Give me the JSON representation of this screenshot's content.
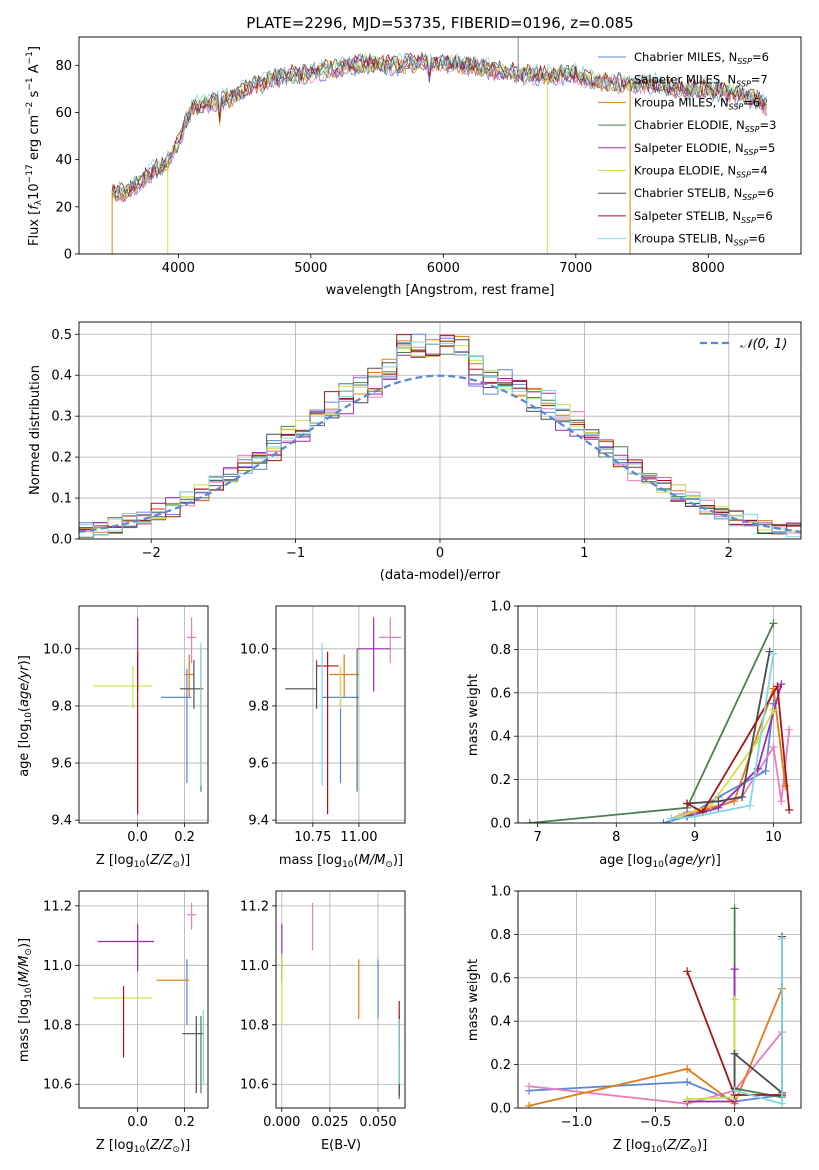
{
  "colors": {
    "chabrier_miles": "#5b86d6",
    "salpeter_miles": "#e97ec0",
    "kroupa_miles": "#e07b19",
    "chabrier_elodie": "#4e7f52",
    "salpeter_elodie": "#9a2bb5",
    "kroupa_elodie": "#cde04a",
    "chabrier_stelib": "#4d4d4d",
    "salpeter_stelib": "#a3161c",
    "kroupa_stelib": "#7fd8e0",
    "normal": "#5b86d6",
    "grid": "#b0b0b0"
  },
  "chart_data": [
    {
      "id": "spectrum",
      "type": "line",
      "title": "PLATE=2296, MJD=53735, FIBERID=0196, z=0.085",
      "xlabel": "wavelength [Angstrom, rest frame]",
      "ylabel": "Flux [f_λ 10^-17 erg cm^-2 s^-1 A^-1]",
      "xlim": [
        3250,
        8700
      ],
      "ylim": [
        0,
        92
      ],
      "xticks": [
        4000,
        5000,
        6000,
        7000,
        8000
      ],
      "yticks": [
        0,
        20,
        40,
        60,
        80
      ],
      "grid": false,
      "legend_position": "top-right",
      "series": [
        {
          "name": "Chabrier MILES, N_SSP=6",
          "color": "#5b86d6"
        },
        {
          "name": "Salpeter MILES, N_SSP=7",
          "color": "#e97ec0"
        },
        {
          "name": "Kroupa MILES, N_SSP=6",
          "color": "#e07b19"
        },
        {
          "name": "Chabrier ELODIE, N_SSP=3",
          "color": "#4e7f52"
        },
        {
          "name": "Salpeter ELODIE, N_SSP=5",
          "color": "#9a2bb5"
        },
        {
          "name": "Kroupa ELODIE, N_SSP=4",
          "color": "#cde04a"
        },
        {
          "name": "Chabrier STELIB, N_SSP=6",
          "color": "#4d4d4d"
        },
        {
          "name": "Salpeter STELIB, N_SSP=6",
          "color": "#a3161c"
        },
        {
          "name": "Kroupa STELIB, N_SSP=6",
          "color": "#7fd8e0"
        }
      ],
      "continuum": {
        "x": [
          3500,
          3600,
          3700,
          3800,
          3900,
          4000,
          4100,
          4200,
          4300,
          4400,
          4500,
          4600,
          4700,
          4800,
          4900,
          5000,
          5200,
          5400,
          5600,
          5800,
          6000,
          6200,
          6400,
          6600,
          6800,
          7000,
          7200,
          7400,
          7600,
          7800,
          8000,
          8200,
          8350,
          8450
        ],
        "y": [
          27,
          26,
          30,
          35,
          38,
          47,
          62,
          64,
          65,
          66,
          70,
          72,
          74,
          76,
          76,
          77,
          79,
          81,
          80,
          81,
          81,
          80,
          78,
          76,
          76,
          76,
          73,
          72,
          72,
          70,
          70,
          68,
          66,
          62
        ]
      }
    },
    {
      "id": "residuals",
      "type": "histogram",
      "xlabel": "(data-model)/error",
      "ylabel": "Normed distribution",
      "xlim": [
        -2.5,
        2.5
      ],
      "ylim": [
        0,
        0.53
      ],
      "xticks": [
        -2,
        -1,
        0,
        1,
        2
      ],
      "yticks": [
        0.0,
        0.1,
        0.2,
        0.3,
        0.4,
        0.5
      ],
      "grid": true,
      "legend": [
        "𝒩(0, 1)"
      ],
      "bin_width": 0.1
    },
    {
      "id": "age_vs_Z",
      "type": "scatter_errorbar",
      "xlabel": "Z [log10(Z/Z⊙)]",
      "ylabel": "age [log10(age/yr)]",
      "xlim": [
        -0.25,
        0.3
      ],
      "ylim": [
        9.39,
        10.15
      ],
      "xticks": [
        0.0,
        0.2
      ],
      "yticks": [
        9.4,
        9.6,
        9.8,
        10.0
      ],
      "grid": true,
      "points": [
        {
          "series": "chabrier_miles",
          "x": 0.21,
          "y": 9.83,
          "xerr": [
            0.11,
            0.02
          ],
          "yerr": [
            0.3,
            0.1
          ]
        },
        {
          "series": "salpeter_miles",
          "x": 0.23,
          "y": 10.04,
          "xerr": [
            0.02,
            0.02
          ],
          "yerr": [
            0.09,
            0.07
          ]
        },
        {
          "series": "kroupa_miles",
          "x": 0.22,
          "y": 9.91,
          "xerr": [
            0.02,
            0.02
          ],
          "yerr": [
            0.08,
            0.07
          ]
        },
        {
          "series": "chabrier_elodie",
          "x": 0.27,
          "y": 9.83,
          "xerr": [
            0.0,
            0.0
          ],
          "yerr": [
            0.33,
            0.17
          ]
        },
        {
          "series": "salpeter_elodie",
          "x": 0.0,
          "y": 10.0,
          "xerr": [
            0.0,
            0.0
          ],
          "yerr": [
            0.15,
            0.11
          ]
        },
        {
          "series": "kroupa_elodie",
          "x": -0.02,
          "y": 9.87,
          "xerr": [
            0.17,
            0.08
          ],
          "yerr": [
            0.08,
            0.07
          ]
        },
        {
          "series": "chabrier_stelib",
          "x": 0.24,
          "y": 9.86,
          "xerr": [
            0.06,
            0.04
          ],
          "yerr": [
            0.07,
            0.1
          ]
        },
        {
          "series": "salpeter_stelib",
          "x": 0.0,
          "y": 9.94,
          "xerr": [
            0.0,
            0.0
          ],
          "yerr": [
            0.52,
            0.05
          ]
        },
        {
          "series": "kroupa_stelib",
          "x": 0.27,
          "y": 9.95,
          "xerr": [
            0.0,
            0.0
          ],
          "yerr": [
            0.43,
            0.07
          ]
        }
      ]
    },
    {
      "id": "age_vs_mass",
      "type": "scatter_errorbar",
      "xlabel": "mass [log10(M/M⊙)]",
      "ylabel": "",
      "xlim": [
        10.55,
        11.25
      ],
      "ylim": [
        9.39,
        10.15
      ],
      "xticks": [
        10.75,
        11.0
      ],
      "yticks": [
        9.4,
        9.6,
        9.8,
        10.0
      ],
      "grid": true,
      "points": [
        {
          "series": "chabrier_miles",
          "x": 10.9,
          "y": 9.83,
          "xerr": [
            0.1,
            0.1
          ],
          "yerr": [
            0.3,
            0.1
          ]
        },
        {
          "series": "salpeter_miles",
          "x": 11.17,
          "y": 10.04,
          "xerr": [
            0.06,
            0.06
          ],
          "yerr": [
            0.09,
            0.07
          ]
        },
        {
          "series": "kroupa_miles",
          "x": 10.92,
          "y": 9.91,
          "xerr": [
            0.08,
            0.08
          ],
          "yerr": [
            0.08,
            0.07
          ]
        },
        {
          "series": "chabrier_elodie",
          "x": 10.99,
          "y": 9.83,
          "xerr": [
            0.0,
            0.0
          ],
          "yerr": [
            0.33,
            0.17
          ]
        },
        {
          "series": "salpeter_elodie",
          "x": 11.08,
          "y": 10.0,
          "xerr": [
            0.09,
            0.09
          ],
          "yerr": [
            0.15,
            0.11
          ]
        },
        {
          "series": "kroupa_elodie",
          "x": 10.9,
          "y": 9.87,
          "xerr": [
            0.0,
            0.0
          ],
          "yerr": [
            0.08,
            0.07
          ]
        },
        {
          "series": "chabrier_stelib",
          "x": 10.77,
          "y": 9.86,
          "xerr": [
            0.17,
            0.0
          ],
          "yerr": [
            0.07,
            0.1
          ]
        },
        {
          "series": "salpeter_stelib",
          "x": 10.83,
          "y": 9.94,
          "xerr": [
            0.06,
            0.06
          ],
          "yerr": [
            0.52,
            0.05
          ]
        },
        {
          "series": "kroupa_stelib",
          "x": 10.8,
          "y": 9.95,
          "xerr": [
            0.0,
            0.0
          ],
          "yerr": [
            0.43,
            0.07
          ]
        }
      ]
    },
    {
      "id": "weight_vs_age",
      "type": "line",
      "xlabel": "age [log10(age/yr)]",
      "ylabel": "mass weight",
      "xlim": [
        6.75,
        10.35
      ],
      "ylim": [
        0,
        1
      ],
      "xticks": [
        7,
        8,
        9,
        10
      ],
      "yticks": [
        0.0,
        0.2,
        0.4,
        0.6,
        0.8,
        1.0
      ],
      "grid": true,
      "series": [
        {
          "series": "chabrier_miles",
          "x": [
            8.6,
            8.9,
            9.3,
            9.9,
            10.0
          ],
          "y": [
            0.0,
            0.03,
            0.12,
            0.24,
            0.55
          ]
        },
        {
          "series": "salpeter_miles",
          "x": [
            8.7,
            8.9,
            9.2,
            9.6,
            10.0,
            10.1,
            10.2
          ],
          "y": [
            0.02,
            0.05,
            0.06,
            0.12,
            0.35,
            0.1,
            0.43
          ]
        },
        {
          "series": "kroupa_miles",
          "x": [
            8.8,
            9.0,
            9.5,
            10.0,
            10.15
          ],
          "y": [
            0.03,
            0.05,
            0.1,
            0.62,
            0.17
          ]
        },
        {
          "series": "chabrier_elodie",
          "x": [
            6.9,
            8.9,
            10.0
          ],
          "y": [
            0.0,
            0.07,
            0.92
          ]
        },
        {
          "series": "salpeter_elodie",
          "x": [
            8.9,
            9.3,
            9.8,
            10.1
          ],
          "y": [
            0.03,
            0.07,
            0.25,
            0.64
          ]
        },
        {
          "series": "kroupa_elodie",
          "x": [
            8.8,
            9.2,
            9.8,
            10.0
          ],
          "y": [
            0.03,
            0.08,
            0.38,
            0.52
          ]
        },
        {
          "series": "chabrier_stelib",
          "x": [
            8.9,
            9.3,
            9.6,
            9.95
          ],
          "y": [
            0.09,
            0.1,
            0.12,
            0.79
          ]
        },
        {
          "series": "salpeter_stelib",
          "x": [
            8.9,
            9.1,
            10.05,
            10.2
          ],
          "y": [
            0.09,
            0.05,
            0.63,
            0.06
          ]
        },
        {
          "series": "kroupa_stelib",
          "x": [
            8.7,
            9.0,
            9.7,
            10.0
          ],
          "y": [
            0.02,
            0.03,
            0.08,
            0.78
          ]
        }
      ]
    },
    {
      "id": "mass_vs_Z",
      "type": "scatter_errorbar",
      "xlabel": "Z [log10(Z/Z⊙)]",
      "ylabel": "mass [log10(M/M⊙)]",
      "xlim": [
        -0.25,
        0.3
      ],
      "ylim": [
        10.52,
        11.25
      ],
      "xticks": [
        0.0,
        0.2
      ],
      "yticks": [
        10.6,
        10.8,
        11.0,
        11.2
      ],
      "grid": true,
      "points": [
        {
          "series": "chabrier_miles",
          "x": 0.21,
          "y": 10.9,
          "xerr": [
            0.0,
            0.0
          ],
          "yerr": [
            0.1,
            0.12
          ]
        },
        {
          "series": "salpeter_miles",
          "x": 0.23,
          "y": 11.17,
          "xerr": [
            0.02,
            0.02
          ],
          "yerr": [
            0.05,
            0.04
          ]
        },
        {
          "series": "kroupa_miles",
          "x": 0.15,
          "y": 10.95,
          "xerr": [
            0.07,
            0.07
          ],
          "yerr": [
            0.0,
            0.0
          ]
        },
        {
          "series": "chabrier_elodie",
          "x": 0.27,
          "y": 10.77,
          "xerr": [
            0.0,
            0.0
          ],
          "yerr": [
            0.2,
            0.06
          ]
        },
        {
          "series": "salpeter_elodie",
          "x": 0.0,
          "y": 11.08,
          "xerr": [
            0.17,
            0.07
          ],
          "yerr": [
            0.1,
            0.06
          ]
        },
        {
          "series": "kroupa_elodie",
          "x": -0.02,
          "y": 10.89,
          "xerr": [
            0.17,
            0.08
          ],
          "yerr": [
            0.0,
            0.0
          ]
        },
        {
          "series": "chabrier_stelib",
          "x": 0.25,
          "y": 10.77,
          "xerr": [
            0.06,
            0.03
          ],
          "yerr": [
            0.2,
            0.06
          ]
        },
        {
          "series": "salpeter_stelib",
          "x": -0.06,
          "y": 10.83,
          "xerr": [
            0.0,
            0.0
          ],
          "yerr": [
            0.14,
            0.1
          ]
        },
        {
          "series": "kroupa_stelib",
          "x": 0.28,
          "y": 10.8,
          "xerr": [
            0.0,
            0.0
          ],
          "yerr": [
            0.2,
            0.05
          ]
        }
      ]
    },
    {
      "id": "mass_vs_ebv",
      "type": "scatter_errorbar",
      "xlabel": "E(B-V)",
      "ylabel": "",
      "xlim": [
        -0.003,
        0.064
      ],
      "ylim": [
        10.52,
        11.25
      ],
      "xticks": [
        0.0,
        0.025,
        0.05
      ],
      "yticks": [
        10.6,
        10.8,
        11.0,
        11.2
      ],
      "grid": true,
      "points": [
        {
          "series": "chabrier_miles",
          "x": 0.05,
          "y": 10.92,
          "xerr": [
            0.0,
            0.0
          ],
          "yerr": [
            0.1,
            0.1
          ]
        },
        {
          "series": "salpeter_miles",
          "x": 0.016,
          "y": 11.13,
          "xerr": [
            0.0,
            0.0
          ],
          "yerr": [
            0.08,
            0.08
          ]
        },
        {
          "series": "kroupa_miles",
          "x": 0.04,
          "y": 10.92,
          "xerr": [
            0.0,
            0.0
          ],
          "yerr": [
            0.1,
            0.1
          ]
        },
        {
          "series": "chabrier_elodie",
          "x": 0.061,
          "y": 10.75,
          "xerr": [
            0.0,
            0.0
          ],
          "yerr": [
            0.2,
            0.08
          ]
        },
        {
          "series": "salpeter_elodie",
          "x": 0.0,
          "y": 11.05,
          "xerr": [
            0.0,
            0.0
          ],
          "yerr": [
            0.1,
            0.09
          ]
        },
        {
          "series": "kroupa_elodie",
          "x": 0.0,
          "y": 10.92,
          "xerr": [
            0.0,
            0.0
          ],
          "yerr": [
            0.12,
            0.12
          ]
        },
        {
          "series": "chabrier_stelib",
          "x": 0.061,
          "y": 10.76,
          "xerr": [
            0.0,
            0.0
          ],
          "yerr": [
            0.2,
            0.06
          ]
        },
        {
          "series": "salpeter_stelib",
          "x": 0.061,
          "y": 10.8,
          "xerr": [
            0.0,
            0.0
          ],
          "yerr": [
            0.08,
            0.08
          ]
        },
        {
          "series": "kroupa_stelib",
          "x": 0.061,
          "y": 10.72,
          "xerr": [
            0.0,
            0.0
          ],
          "yerr": [
            0.12,
            0.1
          ]
        }
      ]
    },
    {
      "id": "weight_vs_Z",
      "type": "line",
      "xlabel": "Z [log10(Z/Z⊙)]",
      "ylabel": "mass weight",
      "xlim": [
        -1.37,
        0.42
      ],
      "ylim": [
        0,
        1
      ],
      "xticks": [
        -1.0,
        -0.5,
        0.0
      ],
      "yticks": [
        0.0,
        0.2,
        0.4,
        0.6,
        0.8,
        1.0
      ],
      "grid": true,
      "series": [
        {
          "series": "chabrier_miles",
          "x": [
            -1.3,
            -0.3,
            0.0,
            0.3
          ],
          "y": [
            0.08,
            0.12,
            0.03,
            0.06
          ]
        },
        {
          "series": "salpeter_miles",
          "x": [
            -1.3,
            -0.3,
            0.0,
            0.3
          ],
          "y": [
            0.1,
            0.02,
            0.08,
            0.35
          ]
        },
        {
          "series": "kroupa_miles",
          "x": [
            -1.3,
            -0.3,
            0.0,
            0.3
          ],
          "y": [
            0.01,
            0.18,
            0.02,
            0.55
          ]
        },
        {
          "series": "chabrier_elodie",
          "x": [
            0.0,
            0.0,
            0.3
          ],
          "y": [
            0.92,
            0.09,
            0.05
          ]
        },
        {
          "series": "salpeter_elodie",
          "x": [
            -0.3,
            0.0,
            0.0
          ],
          "y": [
            0.03,
            0.03,
            0.64
          ]
        },
        {
          "series": "kroupa_elodie",
          "x": [
            -0.3,
            0.0,
            0.0
          ],
          "y": [
            0.04,
            0.05,
            0.5
          ]
        },
        {
          "series": "chabrier_stelib",
          "x": [
            0.0,
            0.0,
            0.3,
            0.3
          ],
          "y": [
            0.09,
            0.25,
            0.07,
            0.79
          ]
        },
        {
          "series": "salpeter_stelib",
          "x": [
            -0.3,
            0.0,
            0.3
          ],
          "y": [
            0.63,
            0.06,
            0.06
          ]
        },
        {
          "series": "kroupa_stelib",
          "x": [
            0.0,
            0.3,
            0.3
          ],
          "y": [
            0.08,
            0.02,
            0.78
          ]
        }
      ]
    }
  ]
}
